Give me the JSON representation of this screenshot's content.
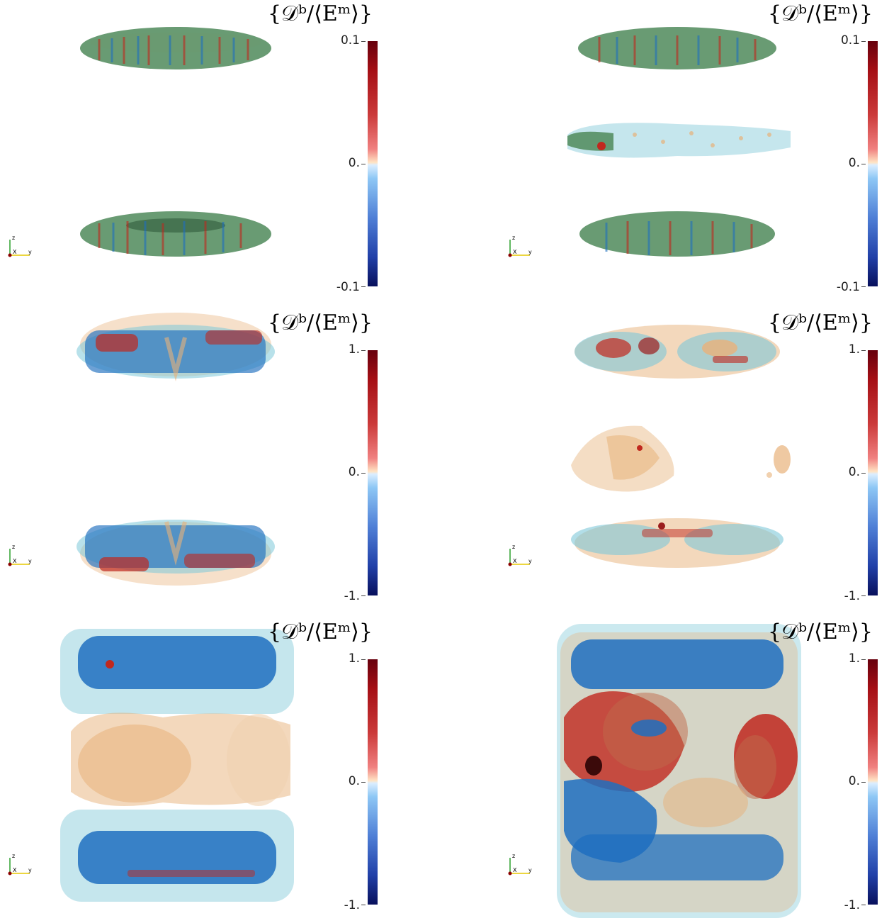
{
  "panels": [
    {
      "title": "{𝒟ᵇ/⟨Eᵐ⟩}",
      "scale": {
        "max": "0.1",
        "mid": "0.",
        "min": "-0.1"
      },
      "axes": {
        "z": "z",
        "x": "X",
        "y": "y"
      }
    },
    {
      "title": "{𝒟ᵇ/⟨Eᵐ⟩}",
      "scale": {
        "max": "0.1",
        "mid": "0.",
        "min": "-0.1"
      },
      "axes": {
        "z": "z",
        "x": "X",
        "y": "y"
      }
    },
    {
      "title": "{𝒟ᵇ/⟨Eᵐ⟩}",
      "scale": {
        "max": "1.",
        "mid": "0.",
        "min": "-1."
      },
      "axes": {
        "z": "z",
        "x": "X",
        "y": "y"
      }
    },
    {
      "title": "{𝒟ᵇ/⟨Eᵐ⟩}",
      "scale": {
        "max": "1.",
        "mid": "0.",
        "min": "-1."
      },
      "axes": {
        "z": "z",
        "x": "X",
        "y": "y"
      }
    },
    {
      "title": "{𝒟ᵇ/⟨Eᵐ⟩}",
      "scale": {
        "max": "1.",
        "mid": "0.",
        "min": "-1."
      },
      "axes": {
        "z": "z",
        "x": "X",
        "y": "y"
      }
    },
    {
      "title": "{𝒟ᵇ/⟨Eᵐ⟩}",
      "scale": {
        "max": "1.",
        "mid": "0.",
        "min": "-1."
      },
      "axes": {
        "z": "z",
        "x": "X",
        "y": "y"
      }
    }
  ],
  "colors": {
    "red": "#c0281e",
    "blue": "#1f6fbf",
    "cyan": "#7ec8d8",
    "tan": "#e8b27a",
    "green": "#4f8a5a"
  }
}
